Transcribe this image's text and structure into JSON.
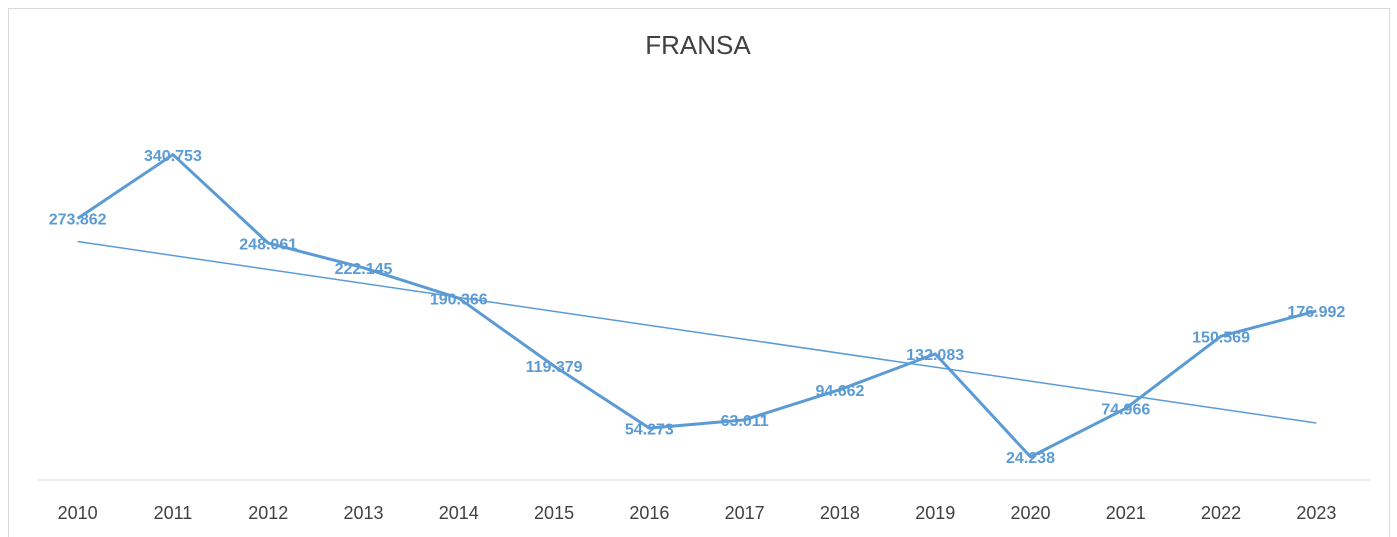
{
  "chart_data": {
    "type": "line",
    "title": "FRANSA",
    "categories": [
      "2010",
      "2011",
      "2012",
      "2013",
      "2014",
      "2015",
      "2016",
      "2017",
      "2018",
      "2019",
      "2020",
      "2021",
      "2022",
      "2023"
    ],
    "series": [
      {
        "name": "FRANSA",
        "color": "#5b9bd5",
        "values": [
          273862,
          340753,
          248061,
          222145,
          190366,
          119379,
          54273,
          63011,
          94662,
          132083,
          24238,
          74966,
          150569,
          176992
        ],
        "value_labels": [
          "273.862",
          "340.753",
          "248.061",
          "222.145",
          "190.366",
          "119.379",
          "54.273",
          "63.011",
          "94.662",
          "132.083",
          "24.238",
          "74.966",
          "150.569",
          "176.992"
        ]
      }
    ],
    "ylim": [
      0,
      400000
    ],
    "trendline": "linear",
    "legend": false
  }
}
